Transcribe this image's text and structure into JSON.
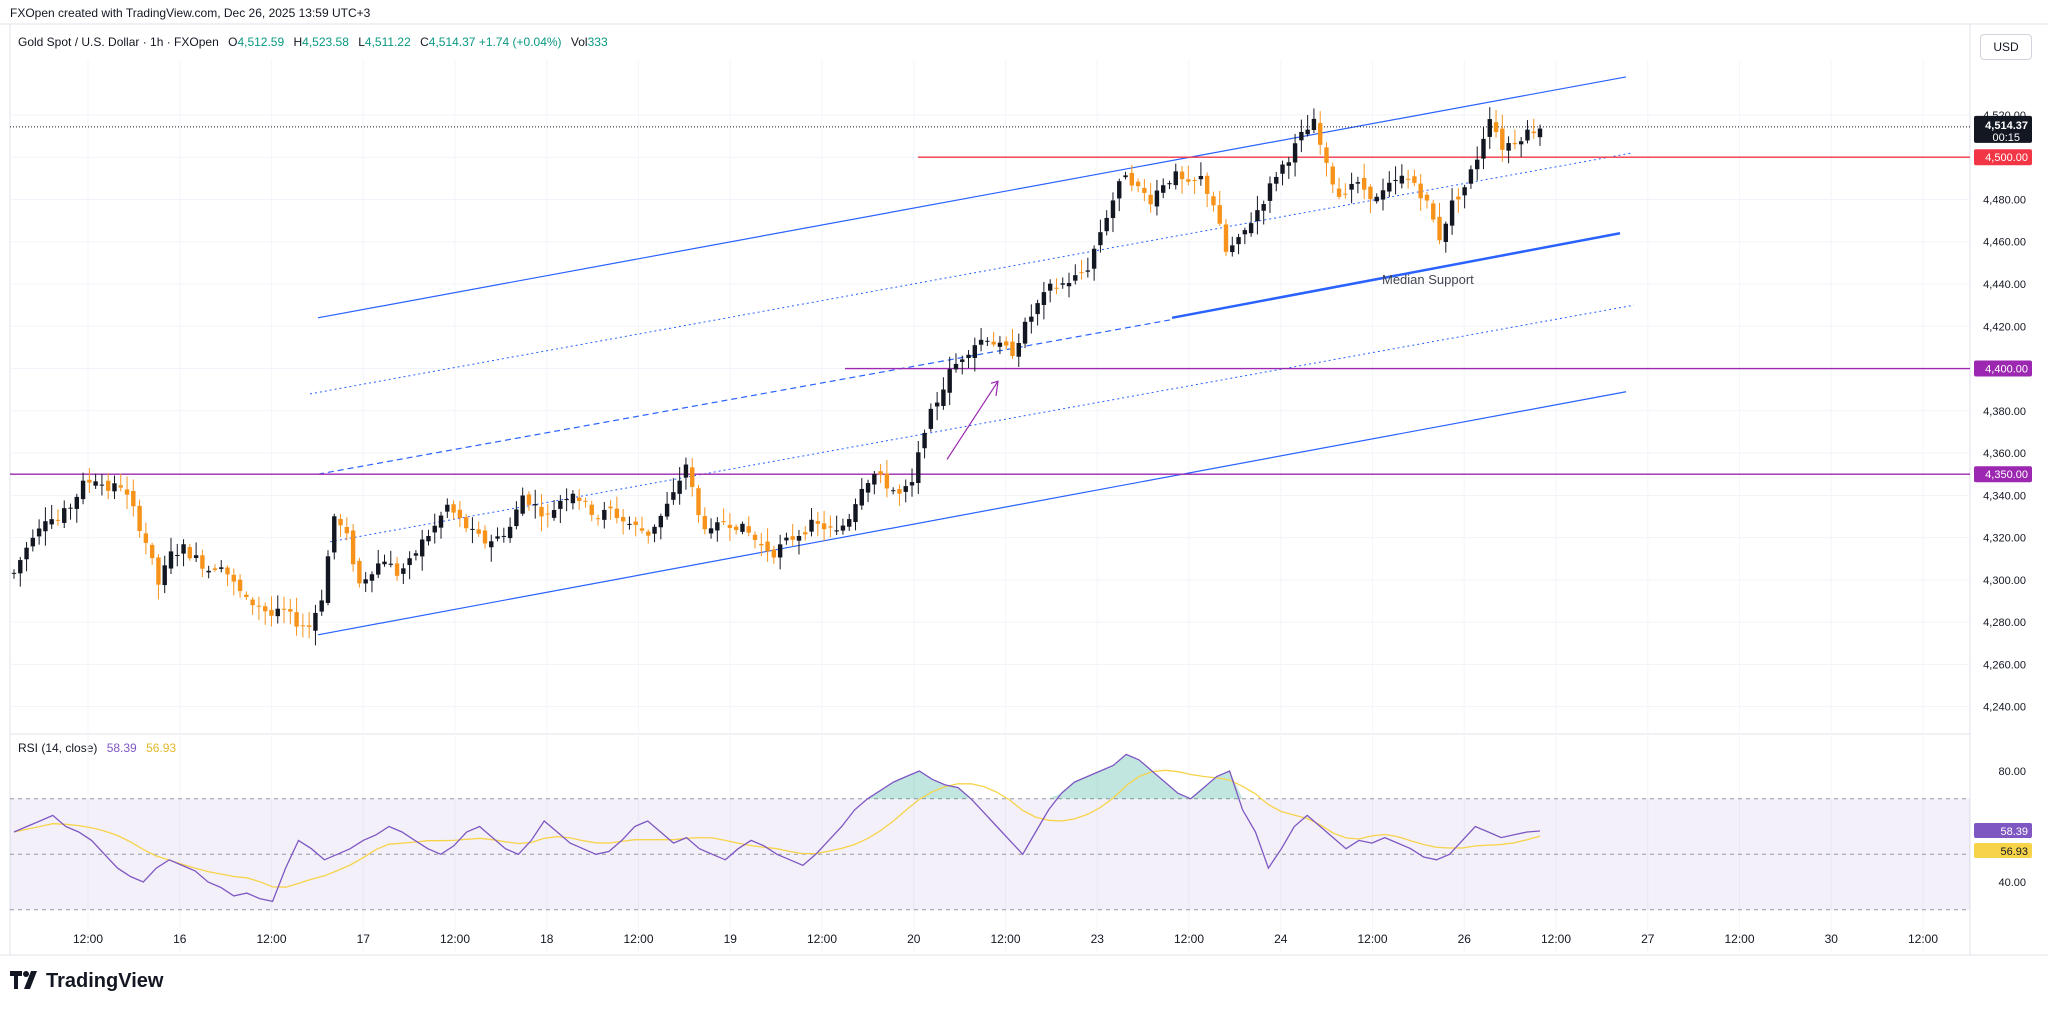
{
  "header": {
    "created": "FXOpen created with TradingView.com, Dec 26, 2025 13:59 UTC+3",
    "symbol": "Gold Spot / U.S. Dollar · 1h · FXOpen",
    "o_label": "O",
    "o": "4,512.59",
    "h_label": "H",
    "h": "4,523.58",
    "l_label": "L",
    "l": "4,511.22",
    "c_label": "C",
    "c": "4,514.37",
    "change": "+1.74 (+0.04%)",
    "vol_label": "Vol",
    "vol": "333",
    "currency": "USD"
  },
  "rsi": {
    "label": "RSI (14, close)",
    "value": "58.39",
    "ma": "56.93"
  },
  "brand": "TradingView",
  "colors": {
    "up": "#131722",
    "down": "#f7931a",
    "channel": "#2962ff",
    "red": "#f23645",
    "purple": "#9c27b0",
    "rsi": "#7e57c2",
    "rsi_ma": "#f7d34a"
  },
  "chart_data": {
    "type": "candlestick",
    "price_axis": {
      "ticks": [
        "4,520.00",
        "4,500.00",
        "4,480.00",
        "4,460.00",
        "4,440.00",
        "4,420.00",
        "4,400.00",
        "4,380.00",
        "4,360.00",
        "4,340.00",
        "4,320.00",
        "4,300.00",
        "4,280.00",
        "4,260.00",
        "4,240.00"
      ],
      "range": [
        4228,
        4546
      ]
    },
    "time_axis": [
      "12:00",
      "16",
      "12:00",
      "17",
      "12:00",
      "18",
      "12:00",
      "19",
      "12:00",
      "20",
      "12:00",
      "23",
      "12:00",
      "24",
      "12:00",
      "26",
      "12:00",
      "27",
      "12:00",
      "30",
      "12:00"
    ],
    "last_price": {
      "value": "4,514.37",
      "countdown": "00:15"
    },
    "levels": [
      {
        "label": "4,500.00",
        "value": 4500,
        "color": "red"
      },
      {
        "label": "4,400.00",
        "value": 4400,
        "color": "purple"
      },
      {
        "label": "4,350.00",
        "value": 4350,
        "color": "purple"
      }
    ],
    "annotation": "Median Support",
    "close_path": [
      [
        0,
        4303
      ],
      [
        3,
        4322
      ],
      [
        5,
        4330
      ],
      [
        7,
        4328
      ],
      [
        9,
        4335
      ],
      [
        11,
        4345
      ],
      [
        13,
        4348
      ],
      [
        15,
        4343
      ],
      [
        17,
        4345
      ],
      [
        19,
        4333
      ],
      [
        21,
        4318
      ],
      [
        23,
        4298
      ],
      [
        25,
        4312
      ],
      [
        27,
        4315
      ],
      [
        29,
        4310
      ],
      [
        31,
        4305
      ],
      [
        33,
        4308
      ],
      [
        35,
        4298
      ],
      [
        37,
        4290
      ],
      [
        39,
        4288
      ],
      [
        41,
        4283
      ],
      [
        43,
        4285
      ],
      [
        45,
        4280
      ],
      [
        47,
        4278
      ],
      [
        49,
        4292
      ],
      [
        51,
        4330
      ],
      [
        53,
        4320
      ],
      [
        55,
        4298
      ],
      [
        57,
        4305
      ],
      [
        59,
        4310
      ],
      [
        61,
        4303
      ],
      [
        63,
        4308
      ],
      [
        65,
        4318
      ],
      [
        67,
        4325
      ],
      [
        69,
        4335
      ],
      [
        71,
        4328
      ],
      [
        73,
        4322
      ],
      [
        75,
        4318
      ],
      [
        77,
        4320
      ],
      [
        79,
        4325
      ],
      [
        81,
        4340
      ],
      [
        83,
        4335
      ],
      [
        85,
        4330
      ],
      [
        87,
        4338
      ],
      [
        89,
        4342
      ],
      [
        91,
        4335
      ],
      [
        93,
        4330
      ],
      [
        95,
        4333
      ],
      [
        97,
        4328
      ],
      [
        99,
        4325
      ],
      [
        101,
        4322
      ],
      [
        103,
        4330
      ],
      [
        105,
        4340
      ],
      [
        107,
        4355
      ],
      [
        109,
        4330
      ],
      [
        111,
        4322
      ],
      [
        113,
        4328
      ],
      [
        115,
        4326
      ],
      [
        117,
        4322
      ],
      [
        119,
        4316
      ],
      [
        121,
        4313
      ],
      [
        123,
        4318
      ],
      [
        125,
        4322
      ],
      [
        127,
        4326
      ],
      [
        129,
        4325
      ],
      [
        131,
        4322
      ],
      [
        133,
        4330
      ],
      [
        135,
        4345
      ],
      [
        137,
        4350
      ],
      [
        139,
        4345
      ],
      [
        141,
        4340
      ],
      [
        143,
        4345
      ],
      [
        145,
        4372
      ],
      [
        147,
        4385
      ],
      [
        149,
        4398
      ],
      [
        151,
        4406
      ],
      [
        153,
        4412
      ],
      [
        155,
        4415
      ],
      [
        157,
        4410
      ],
      [
        159,
        4408
      ],
      [
        161,
        4420
      ],
      [
        163,
        4430
      ],
      [
        165,
        4438
      ],
      [
        167,
        4440
      ],
      [
        169,
        4443
      ],
      [
        171,
        4448
      ],
      [
        173,
        4465
      ],
      [
        175,
        4480
      ],
      [
        177,
        4493
      ],
      [
        179,
        4485
      ],
      [
        181,
        4480
      ],
      [
        183,
        4488
      ],
      [
        185,
        4491
      ],
      [
        187,
        4486
      ],
      [
        189,
        4490
      ],
      [
        191,
        4478
      ],
      [
        193,
        4455
      ],
      [
        195,
        4460
      ],
      [
        197,
        4470
      ],
      [
        199,
        4480
      ],
      [
        201,
        4492
      ],
      [
        203,
        4500
      ],
      [
        205,
        4510
      ],
      [
        207,
        4516
      ],
      [
        209,
        4495
      ],
      [
        211,
        4482
      ],
      [
        213,
        4488
      ],
      [
        215,
        4485
      ],
      [
        217,
        4480
      ],
      [
        219,
        4486
      ],
      [
        221,
        4490
      ],
      [
        223,
        4488
      ],
      [
        225,
        4478
      ],
      [
        227,
        4462
      ],
      [
        229,
        4478
      ],
      [
        231,
        4486
      ],
      [
        233,
        4500
      ],
      [
        235,
        4520
      ],
      [
        237,
        4505
      ],
      [
        239,
        4508
      ],
      [
        241,
        4512
      ],
      [
        243,
        4514
      ]
    ],
    "rsi_values": [
      58,
      60,
      62,
      64,
      60,
      58,
      55,
      50,
      45,
      42,
      40,
      45,
      48,
      46,
      44,
      40,
      38,
      35,
      36,
      34,
      33,
      45,
      55,
      52,
      48,
      50,
      52,
      55,
      57,
      60,
      58,
      55,
      52,
      50,
      53,
      58,
      60,
      56,
      52,
      50,
      55,
      62,
      58,
      54,
      52,
      50,
      51,
      55,
      60,
      62,
      58,
      54,
      56,
      52,
      50,
      48,
      52,
      55,
      53,
      50,
      48,
      46,
      50,
      55,
      60,
      66,
      70,
      73,
      76,
      78,
      80,
      77,
      75,
      74,
      70,
      65,
      60,
      55,
      50,
      58,
      66,
      72,
      76,
      78,
      80,
      82,
      86,
      84,
      80,
      76,
      72,
      70,
      74,
      78,
      80,
      66,
      58,
      45,
      52,
      60,
      64,
      60,
      56,
      52,
      55,
      54,
      56,
      54,
      52,
      49,
      48,
      50,
      55,
      60,
      58,
      56,
      57,
      58,
      58.39
    ],
    "rsi_axis": [
      "80.00",
      "40.00"
    ]
  }
}
